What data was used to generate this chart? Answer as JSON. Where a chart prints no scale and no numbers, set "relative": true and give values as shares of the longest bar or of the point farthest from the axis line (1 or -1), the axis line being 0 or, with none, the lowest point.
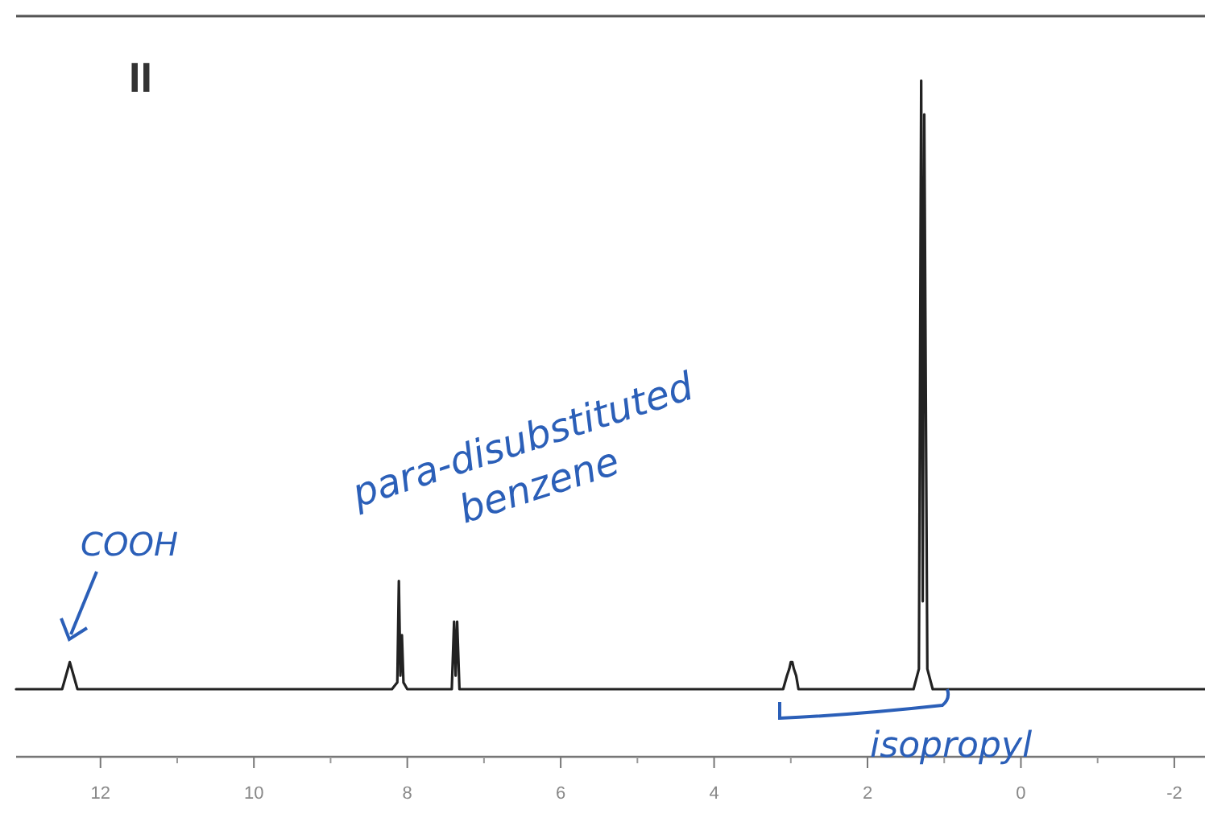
{
  "chart_data": {
    "type": "line",
    "title": "II",
    "relative": true,
    "xlim": [
      13.1,
      -2.4
    ],
    "xticks": [
      12,
      10,
      8,
      6,
      4,
      2,
      0,
      -2
    ],
    "x": [
      13.1,
      12.5,
      12.45,
      12.4,
      12.35,
      12.3,
      8.2,
      8.13,
      8.11,
      8.09,
      8.07,
      8.05,
      8.0,
      7.42,
      7.39,
      7.37,
      7.35,
      7.32,
      3.1,
      3.05,
      3.02,
      3.0,
      2.98,
      2.96,
      2.93,
      2.9,
      1.4,
      1.33,
      1.3,
      1.28,
      1.26,
      1.22,
      1.15,
      -2.4
    ],
    "series": [
      {
        "color": "#222222",
        "values": [
          0.1,
          0.1,
          0.12,
          0.14,
          0.12,
          0.1,
          0.1,
          0.11,
          0.26,
          0.12,
          0.18,
          0.11,
          0.1,
          0.1,
          0.2,
          0.12,
          0.2,
          0.1,
          0.1,
          0.12,
          0.13,
          0.14,
          0.14,
          0.13,
          0.12,
          0.1,
          0.1,
          0.13,
          1,
          0.23,
          0.95,
          0.13,
          0.1,
          0.1
        ]
      }
    ],
    "annotations": [
      "COOH",
      "para-disubstituted\nbenzene",
      "isopropyl"
    ],
    "grid": false,
    "marker": "none",
    "line_style": "solid"
  }
}
